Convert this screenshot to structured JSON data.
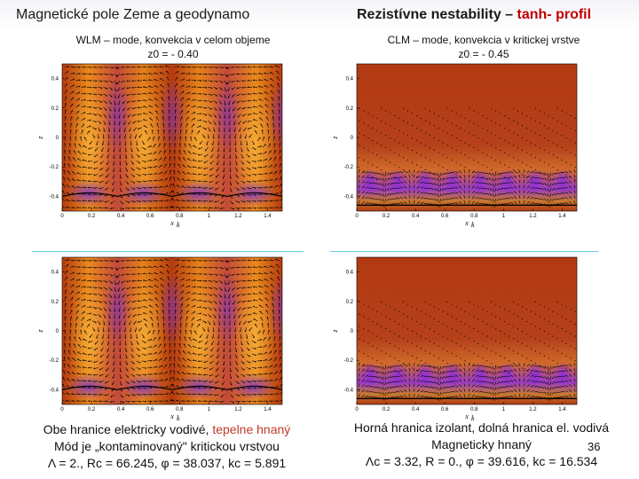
{
  "header": {
    "left_title": "Magnetické pole Zeme a geodynamo",
    "right_title_main": "Rezistívne nestability – ",
    "right_title_accent": "tanh- profil"
  },
  "left_column": {
    "caption_line1": "WLM – mode, konvekcia v celom objeme",
    "caption_line2": "z0 = - 0.40",
    "footer_line1_a": "Obe hranice elektricky vodivé, ",
    "footer_line1_b": "tepelne hnaný",
    "footer_line2": "Mód je „kontaminovaný\" kritickou vrstvou",
    "footer_line3": "Λ = 2., Rc = 66.245, φ = 38.037, kc = 5.891"
  },
  "right_column": {
    "caption_line1": "CLM – mode, konvekcia v kritickej vrstve",
    "caption_line2": "z0 = - 0.45",
    "footer_line1": "Horná hranica izolant, dolná hranica el. vodivá",
    "footer_line2": "Magneticky hnaný",
    "footer_line3": "Λc = 3.32, R = 0., φ = 39.616, kc = 16.534"
  },
  "slide_number": "36",
  "plots": {
    "x_ticks": [
      "0",
      "0.2",
      "0.4",
      "0.6",
      "0.8",
      "1",
      "1.2",
      "1.4"
    ],
    "y_ticks": [
      "0.4",
      "0.2",
      "0",
      "-0.2",
      "-0.4"
    ],
    "x_label": "x",
    "x_label_sub": "k",
    "y_label": "z"
  },
  "colors": {
    "accent_red": "#c00000",
    "rust": "#b03a12",
    "orange": "#e07b18",
    "purple": "#7b2fd0",
    "separator": "#66ccdd"
  }
}
